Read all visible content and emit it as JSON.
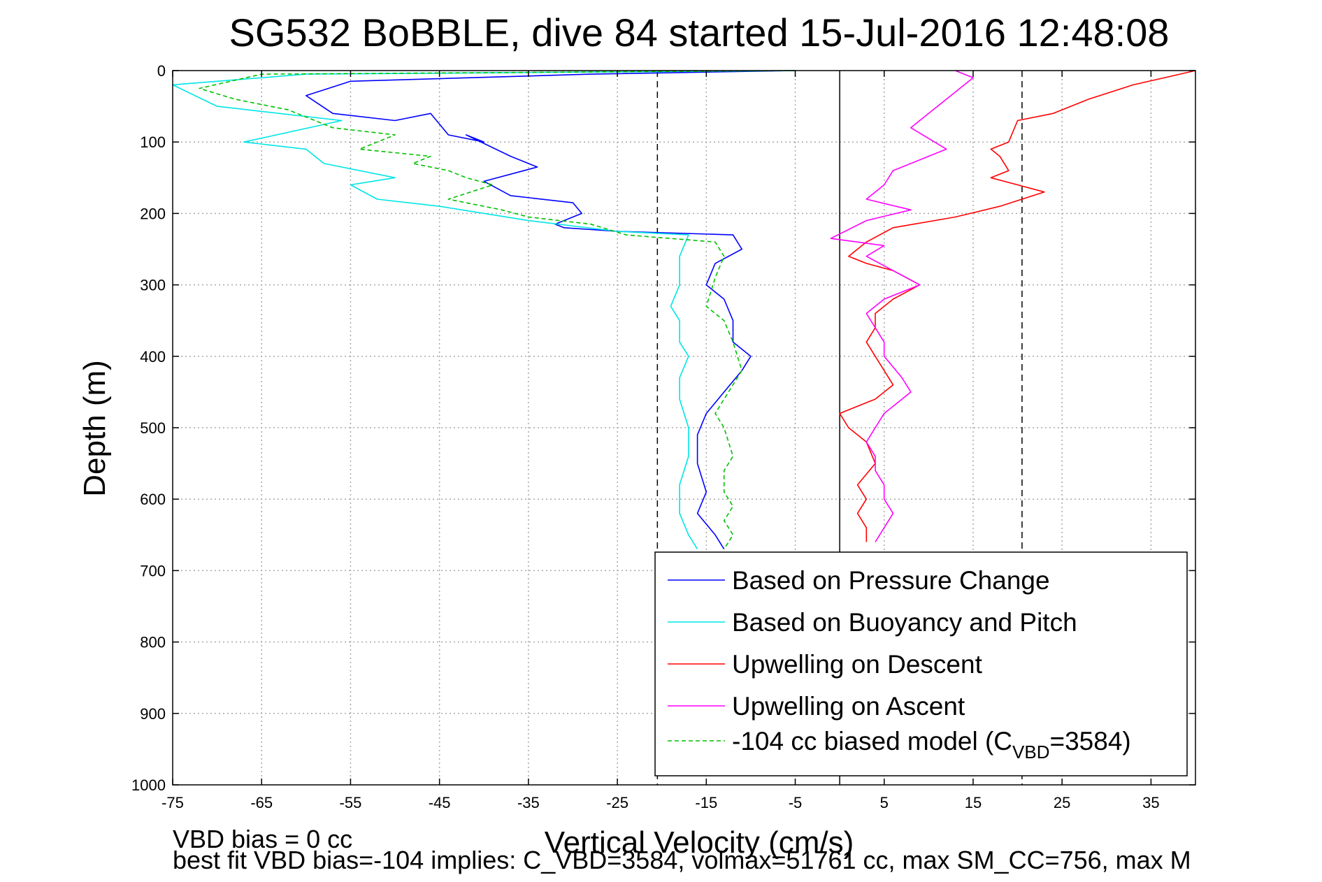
{
  "chart_data": {
    "type": "line",
    "title": "SG532 BoBBLE, dive 84 started 15-Jul-2016 12:48:08",
    "xlabel": "Vertical Velocity (cm/s)",
    "ylabel": "Depth (m)",
    "xlim": [
      -75,
      40
    ],
    "ylim": [
      0,
      1000
    ],
    "y_reversed": true,
    "grid": true,
    "xticks": [
      "-75",
      "-65",
      "-55",
      "-45",
      "-35",
      "-25",
      "-15",
      "-5",
      "5",
      "15",
      "25",
      "35"
    ],
    "yticks": [
      "0",
      "100",
      "200",
      "300",
      "400",
      "500",
      "600",
      "700",
      "800",
      "900",
      "1000"
    ],
    "legend_position": "bottom-right",
    "reference_lines": [
      {
        "x": -20.5,
        "style": "dashed"
      },
      {
        "x": 0,
        "style": "solid"
      },
      {
        "x": 20.5,
        "style": "dashed"
      }
    ],
    "series": [
      {
        "name": "Based on Pressure Change",
        "color": "#0000ff",
        "style": "solid",
        "x": [
          -5,
          -28,
          -55,
          -60,
          -57,
          -50,
          -46,
          -44,
          -40,
          -42,
          -37,
          -34,
          -40,
          -37,
          -30,
          -29,
          -32,
          -31,
          -25,
          -12,
          -11,
          -14,
          -15,
          -13,
          -12,
          -12,
          -10,
          -11,
          -13,
          -15,
          -16,
          -16,
          -15,
          -16,
          -14,
          -13
        ],
        "y": [
          0,
          5,
          15,
          35,
          60,
          70,
          60,
          90,
          100,
          90,
          120,
          135,
          155,
          175,
          185,
          200,
          215,
          220,
          225,
          230,
          250,
          270,
          300,
          320,
          350,
          380,
          400,
          420,
          450,
          480,
          510,
          550,
          590,
          620,
          650,
          670
        ]
      },
      {
        "name": "Based on Buoyancy and Pitch",
        "color": "#00e5e5",
        "style": "solid",
        "x": [
          -5,
          -60,
          -75,
          -70,
          -56,
          -67,
          -60,
          -58,
          -50,
          -55,
          -52,
          -45,
          -35,
          -25,
          -17,
          -18,
          -18,
          -19,
          -18,
          -18,
          -17,
          -18,
          -18,
          -17,
          -17,
          -18,
          -18,
          -17,
          -16
        ],
        "y": [
          0,
          5,
          20,
          50,
          70,
          100,
          110,
          130,
          150,
          160,
          180,
          190,
          210,
          225,
          230,
          260,
          300,
          330,
          350,
          380,
          400,
          430,
          460,
          500,
          540,
          580,
          620,
          650,
          670
        ]
      },
      {
        "name": "Upwelling on Descent",
        "color": "#ff0000",
        "style": "solid",
        "x": [
          40,
          33,
          28,
          24,
          20,
          19,
          17,
          18,
          19,
          17,
          20,
          23,
          18,
          13,
          6,
          3,
          1,
          3,
          6,
          9,
          6,
          4,
          4,
          3,
          4,
          5,
          6,
          4,
          2,
          0,
          1,
          3,
          4,
          2,
          3,
          2,
          3,
          3
        ],
        "y": [
          0,
          20,
          40,
          60,
          70,
          100,
          110,
          120,
          140,
          150,
          160,
          170,
          190,
          205,
          220,
          240,
          260,
          270,
          280,
          300,
          320,
          340,
          360,
          380,
          400,
          420,
          440,
          460,
          470,
          480,
          500,
          520,
          550,
          580,
          600,
          620,
          640,
          660
        ]
      },
      {
        "name": "Upwelling on Ascent",
        "color": "#ff00ff",
        "style": "solid",
        "x": [
          13,
          15,
          12,
          10,
          8,
          12,
          10,
          6,
          5,
          3,
          8,
          3,
          -1,
          5,
          3,
          6,
          9,
          5,
          3,
          4,
          5,
          5,
          7,
          8,
          7,
          5,
          4,
          3,
          4,
          4,
          5,
          5,
          6,
          5,
          4
        ],
        "y": [
          0,
          10,
          40,
          60,
          80,
          110,
          120,
          140,
          160,
          180,
          195,
          210,
          235,
          245,
          260,
          280,
          300,
          320,
          340,
          360,
          380,
          400,
          430,
          450,
          460,
          480,
          500,
          520,
          540,
          560,
          580,
          600,
          620,
          640,
          660
        ]
      },
      {
        "name": "-104 cc biased model (C",
        "name_sub": "VBD",
        "name_tail": "=3584)",
        "color": "#00c000",
        "style": "dashed",
        "x": [
          -5,
          -65,
          -72,
          -68,
          -62,
          -57,
          -50,
          -54,
          -46,
          -48,
          -44,
          -42,
          -39,
          -44,
          -38,
          -35,
          -28,
          -24,
          -14,
          -13,
          -14,
          -15,
          -13,
          -12,
          -11,
          -13,
          -14,
          -13,
          -12,
          -13,
          -13,
          -12,
          -13,
          -12,
          -13
        ],
        "y": [
          0,
          5,
          25,
          40,
          55,
          80,
          90,
          110,
          120,
          130,
          140,
          150,
          160,
          180,
          195,
          205,
          215,
          230,
          240,
          260,
          290,
          330,
          350,
          380,
          420,
          460,
          480,
          500,
          540,
          560,
          590,
          610,
          630,
          650,
          670
        ]
      }
    ]
  },
  "footer": {
    "line1": "VBD bias = 0 cc",
    "line2": "best fit VBD bias=-104 implies: C_VBD=3584, volmax=51761 cc, max SM_CC=756, max M"
  }
}
